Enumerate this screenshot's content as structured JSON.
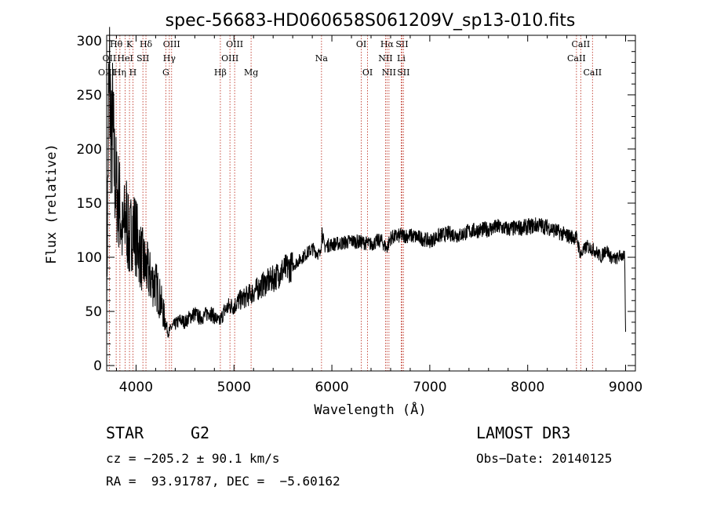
{
  "chart_data": {
    "type": "line",
    "title": "spec-56683-HD060658S061209V_sp13-010.fits",
    "xlabel": "Wavelength (Å)",
    "ylabel": "Flux (relative)",
    "xlim": [
      3700,
      9100
    ],
    "ylim": [
      -5,
      305
    ],
    "xticks": [
      4000,
      5000,
      6000,
      7000,
      8000,
      9000
    ],
    "yticks": [
      0,
      50,
      100,
      150,
      200,
      250,
      300
    ],
    "grid": false,
    "series": [
      {
        "x": [
          3700,
          3710,
          3720,
          3730,
          3740,
          3750,
          3760,
          3780,
          3800,
          3830,
          3860,
          3900,
          3930,
          3960,
          4000,
          4050,
          4100,
          4150,
          4200,
          4250,
          4300,
          4330,
          4360,
          4400,
          4450,
          4500,
          4550,
          4600,
          4650,
          4700,
          4750,
          4800,
          4850,
          4900,
          4950,
          5000,
          5050,
          5100,
          5150,
          5200,
          5300,
          5400,
          5500,
          5600,
          5700,
          5800,
          5880,
          5900,
          5920,
          6000,
          6100,
          6200,
          6300,
          6400,
          6500,
          6560,
          6600,
          6700,
          6800,
          6900,
          7000,
          7100,
          7200,
          7300,
          7400,
          7500,
          7600,
          7700,
          7800,
          7900,
          8000,
          8100,
          8200,
          8300,
          8400,
          8500,
          8540,
          8600,
          8660,
          8700,
          8750,
          8800,
          8850,
          8900,
          8950,
          8990,
          9000
        ],
        "y": [
          40,
          150,
          240,
          260,
          230,
          200,
          220,
          180,
          160,
          150,
          120,
          140,
          110,
          130,
          120,
          100,
          90,
          80,
          75,
          60,
          40,
          30,
          35,
          38,
          42,
          40,
          45,
          48,
          44,
          46,
          50,
          45,
          40,
          50,
          55,
          55,
          60,
          62,
          65,
          68,
          75,
          80,
          88,
          92,
          100,
          108,
          102,
          125,
          110,
          112,
          113,
          115,
          114,
          112,
          116,
          108,
          118,
          120,
          120,
          118,
          115,
          120,
          122,
          120,
          124,
          125,
          126,
          128,
          126,
          127,
          128,
          130,
          128,
          124,
          120,
          118,
          102,
          110,
          108,
          105,
          100,
          108,
          100,
          98,
          102,
          100,
          30
        ]
      }
    ],
    "lines": [
      {
        "label": "Hθ",
        "x": 3797,
        "row": 0
      },
      {
        "label": "K",
        "x": 3933,
        "row": 0
      },
      {
        "label": "Hδ",
        "x": 4101,
        "row": 0
      },
      {
        "label": "OII",
        "x": 3727,
        "row": 1
      },
      {
        "label": "HeI",
        "x": 3889,
        "row": 1
      },
      {
        "label": "SII",
        "x": 4070,
        "row": 1
      },
      {
        "label": "OIII",
        "x": 3700,
        "row": 2
      },
      {
        "label": "Hη",
        "x": 3835,
        "row": 2
      },
      {
        "label": "H",
        "x": 3968,
        "row": 2
      },
      {
        "label": "OIII",
        "x": 4363,
        "row": 0
      },
      {
        "label": "Hγ",
        "x": 4340,
        "row": 1
      },
      {
        "label": "G",
        "x": 4304,
        "row": 2
      },
      {
        "label": "OIII",
        "x": 5007,
        "row": 0
      },
      {
        "label": "OIII",
        "x": 4959,
        "row": 1
      },
      {
        "label": "Hβ",
        "x": 4861,
        "row": 2
      },
      {
        "label": "Mg",
        "x": 5175,
        "row": 2
      },
      {
        "label": "Na",
        "x": 5894,
        "row": 1
      },
      {
        "label": "OI",
        "x": 6300,
        "row": 0
      },
      {
        "label": "OI",
        "x": 6364,
        "row": 2
      },
      {
        "label": "Hα",
        "x": 6563,
        "row": 0
      },
      {
        "label": "SII",
        "x": 6716,
        "row": 0
      },
      {
        "label": "NII",
        "x": 6548,
        "row": 1
      },
      {
        "label": "Li",
        "x": 6708,
        "row": 1
      },
      {
        "label": "NII",
        "x": 6583,
        "row": 2
      },
      {
        "label": "SII",
        "x": 6731,
        "row": 2
      },
      {
        "label": "CaII",
        "x": 8542,
        "row": 0
      },
      {
        "label": "CaII",
        "x": 8498,
        "row": 1
      },
      {
        "label": "CaII",
        "x": 8662,
        "row": 2
      }
    ]
  },
  "footer": {
    "object_type": "STAR",
    "subclass": "G2",
    "survey": "LAMOST DR3",
    "cz": "cz = −205.2 ± 90.1 km/s",
    "obs_date": "Obs−Date: 20140125",
    "coords": "RA =  93.91787, DEC =  −5.60162"
  }
}
